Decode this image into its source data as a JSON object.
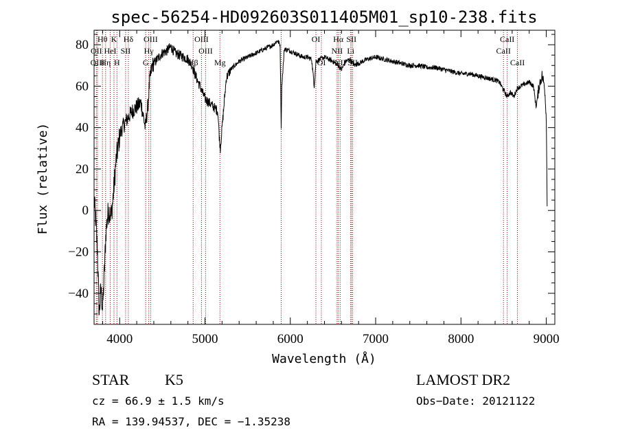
{
  "chart_data": {
    "type": "line",
    "title": "spec-56254-HD092603S011405M01_sp10-238.fits",
    "xlabel": "Wavelength (Å)",
    "ylabel": "Flux (relative)",
    "xlim": [
      3700,
      9100
    ],
    "ylim": [
      -55,
      87
    ],
    "xticks": [
      4000,
      5000,
      6000,
      7000,
      8000,
      9000
    ],
    "yticks": [
      -40,
      -20,
      0,
      20,
      40,
      60,
      80
    ],
    "ytick_labels": [
      "−40",
      "−20",
      "0",
      "20",
      "40",
      "60",
      "80"
    ],
    "line_color": "#000000",
    "marker_color": "#8b0000",
    "spectrum": {
      "x": [
        3700,
        3720,
        3740,
        3760,
        3780,
        3800,
        3820,
        3840,
        3860,
        3880,
        3900,
        3920,
        3940,
        3960,
        3980,
        4000,
        4030,
        4060,
        4100,
        4150,
        4200,
        4250,
        4280,
        4300,
        4330,
        4350,
        4380,
        4420,
        4460,
        4500,
        4550,
        4600,
        4650,
        4700,
        4750,
        4800,
        4850,
        4880,
        4920,
        4960,
        5000,
        5050,
        5100,
        5150,
        5170,
        5180,
        5200,
        5250,
        5300,
        5350,
        5400,
        5450,
        5500,
        5550,
        5600,
        5650,
        5700,
        5750,
        5800,
        5850,
        5880,
        5893,
        5900,
        5930,
        6000,
        6050,
        6100,
        6150,
        6200,
        6250,
        6280,
        6300,
        6350,
        6400,
        6450,
        6500,
        6560,
        6600,
        6650,
        6700,
        6750,
        6800,
        6850,
        6900,
        7000,
        7100,
        7200,
        7300,
        7400,
        7500,
        7600,
        7700,
        7800,
        7900,
        8000,
        8100,
        8200,
        8300,
        8400,
        8450,
        8500,
        8540,
        8580,
        8620,
        8660,
        8700,
        8750,
        8800,
        8850,
        8880,
        8920,
        8950,
        8980,
        9000,
        9010
      ],
      "y": [
        5,
        -5,
        -20,
        -50,
        -38,
        -48,
        -30,
        -10,
        -2,
        0,
        -3,
        5,
        15,
        25,
        30,
        36,
        40,
        42,
        45,
        48,
        50,
        52,
        45,
        40,
        50,
        62,
        70,
        72,
        74,
        76,
        77,
        79,
        76,
        75,
        74,
        73,
        70,
        66,
        62,
        58,
        54,
        52,
        50,
        48,
        34,
        30,
        40,
        64,
        68,
        70,
        72,
        73,
        74,
        75,
        76,
        77,
        78,
        79,
        80,
        82,
        80,
        40,
        60,
        78,
        77,
        76,
        75,
        74,
        74,
        73,
        60,
        72,
        73,
        74,
        73,
        72,
        70,
        68,
        72,
        73,
        70,
        71,
        72,
        73,
        74,
        73,
        72,
        71,
        70,
        70,
        69,
        69,
        68,
        67,
        66,
        66,
        65,
        64,
        63,
        62,
        58,
        55,
        57,
        55,
        59,
        60,
        61,
        62,
        60,
        50,
        61,
        65,
        60,
        45,
        2
      ]
    },
    "lines": [
      {
        "label": "Hθ",
        "wl": 3798,
        "row": 1
      },
      {
        "label": "OII",
        "wl": 3727,
        "row": 2
      },
      {
        "label": "OIII",
        "wl": 3740,
        "row": 3
      },
      {
        "label": "K",
        "wl": 3933,
        "row": 1
      },
      {
        "label": "HeI",
        "wl": 3889,
        "row": 2
      },
      {
        "label": "Hη",
        "wl": 3835,
        "row": 3
      },
      {
        "label": "Hδ",
        "wl": 4102,
        "row": 1
      },
      {
        "label": "SII",
        "wl": 4070,
        "row": 2
      },
      {
        "label": "H",
        "wl": 3968,
        "row": 3
      },
      {
        "label": "OIII",
        "wl": 4363,
        "row": 1
      },
      {
        "label": "Hγ",
        "wl": 4341,
        "row": 2
      },
      {
        "label": "G",
        "wl": 4305,
        "row": 3
      },
      {
        "label": "OIII",
        "wl": 4959,
        "row": 1
      },
      {
        "label": "OIII",
        "wl": 5007,
        "row": 2
      },
      {
        "label": "Hβ",
        "wl": 4861,
        "row": 3
      },
      {
        "label": "Mg",
        "wl": 5175,
        "row": 3
      },
      {
        "label": "OI",
        "wl": 6300,
        "row": 1
      },
      {
        "label": "OI",
        "wl": 6364,
        "row": 3
      },
      {
        "label": "Hα",
        "wl": 6563,
        "row": 1
      },
      {
        "label": "SII",
        "wl": 6716,
        "row": 1
      },
      {
        "label": "NII",
        "wl": 6548,
        "row": 2
      },
      {
        "label": "Li",
        "wl": 6708,
        "row": 2
      },
      {
        "label": "NII",
        "wl": 6584,
        "row": 3
      },
      {
        "label": "SII",
        "wl": 6731,
        "row": 3
      },
      {
        "label": "CaII",
        "wl": 8542,
        "row": 1
      },
      {
        "label": "CaII",
        "wl": 8498,
        "row": 2
      },
      {
        "label": "CaII",
        "wl": 8662,
        "row": 3
      }
    ],
    "extra_lines": [
      5893,
      6300,
      6364,
      8498,
      8542,
      8662
    ]
  },
  "info": {
    "class": "STAR",
    "subclass": "K5",
    "cz": "cz = 66.9 ± 1.5 km/s",
    "coords": "RA = 139.94537, DEC =  −1.35238",
    "survey": "LAMOST DR2",
    "obs_date": "Obs−Date: 20121122"
  }
}
